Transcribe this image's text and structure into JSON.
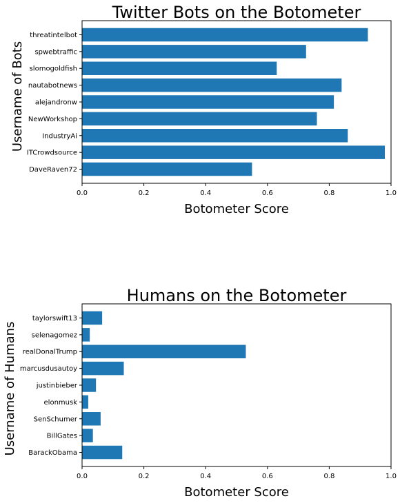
{
  "chart_data": [
    {
      "type": "bar",
      "orientation": "horizontal",
      "title": "Twitter Bots on the Botometer",
      "xlabel": "Botometer Score",
      "ylabel": "Username of Bots",
      "xlim": [
        0,
        1.0
      ],
      "xticks": [
        0.0,
        0.2,
        0.4,
        0.6,
        0.8,
        1.0
      ],
      "xtick_labels": [
        "0.0",
        "0.2",
        "0.4",
        "0.6",
        "0.8",
        "1.0"
      ],
      "categories": [
        "DaveRaven72",
        "ITCrowdsource",
        "IndustryAi",
        "NewWorkshop",
        "alejandronw",
        "nautabotnews",
        "slomogoldfish",
        "spwebtraffic",
        "threatintelbot"
      ],
      "values": [
        0.55,
        0.98,
        0.86,
        0.76,
        0.815,
        0.84,
        0.63,
        0.725,
        0.925
      ],
      "bar_color": "#1f77b4",
      "grid": false
    },
    {
      "type": "bar",
      "orientation": "horizontal",
      "title": "Humans on the Botometer",
      "xlabel": "Botometer Score",
      "ylabel": "Username of Humans",
      "xlim": [
        0,
        1.0
      ],
      "xticks": [
        0.0,
        0.2,
        0.4,
        0.6,
        0.8,
        1.0
      ],
      "xtick_labels": [
        "0.0",
        "0.2",
        "0.4",
        "0.6",
        "0.8",
        "1.0"
      ],
      "categories": [
        "BarackObama",
        "BillGates",
        "SenSchumer",
        "elonmusk",
        "justinbieber",
        "marcusdusautoy",
        "realDonalTrump",
        "selenagomez",
        "taylorswift13"
      ],
      "values": [
        0.13,
        0.035,
        0.06,
        0.02,
        0.045,
        0.135,
        0.53,
        0.025,
        0.065
      ],
      "bar_color": "#1f77b4",
      "grid": false
    }
  ]
}
